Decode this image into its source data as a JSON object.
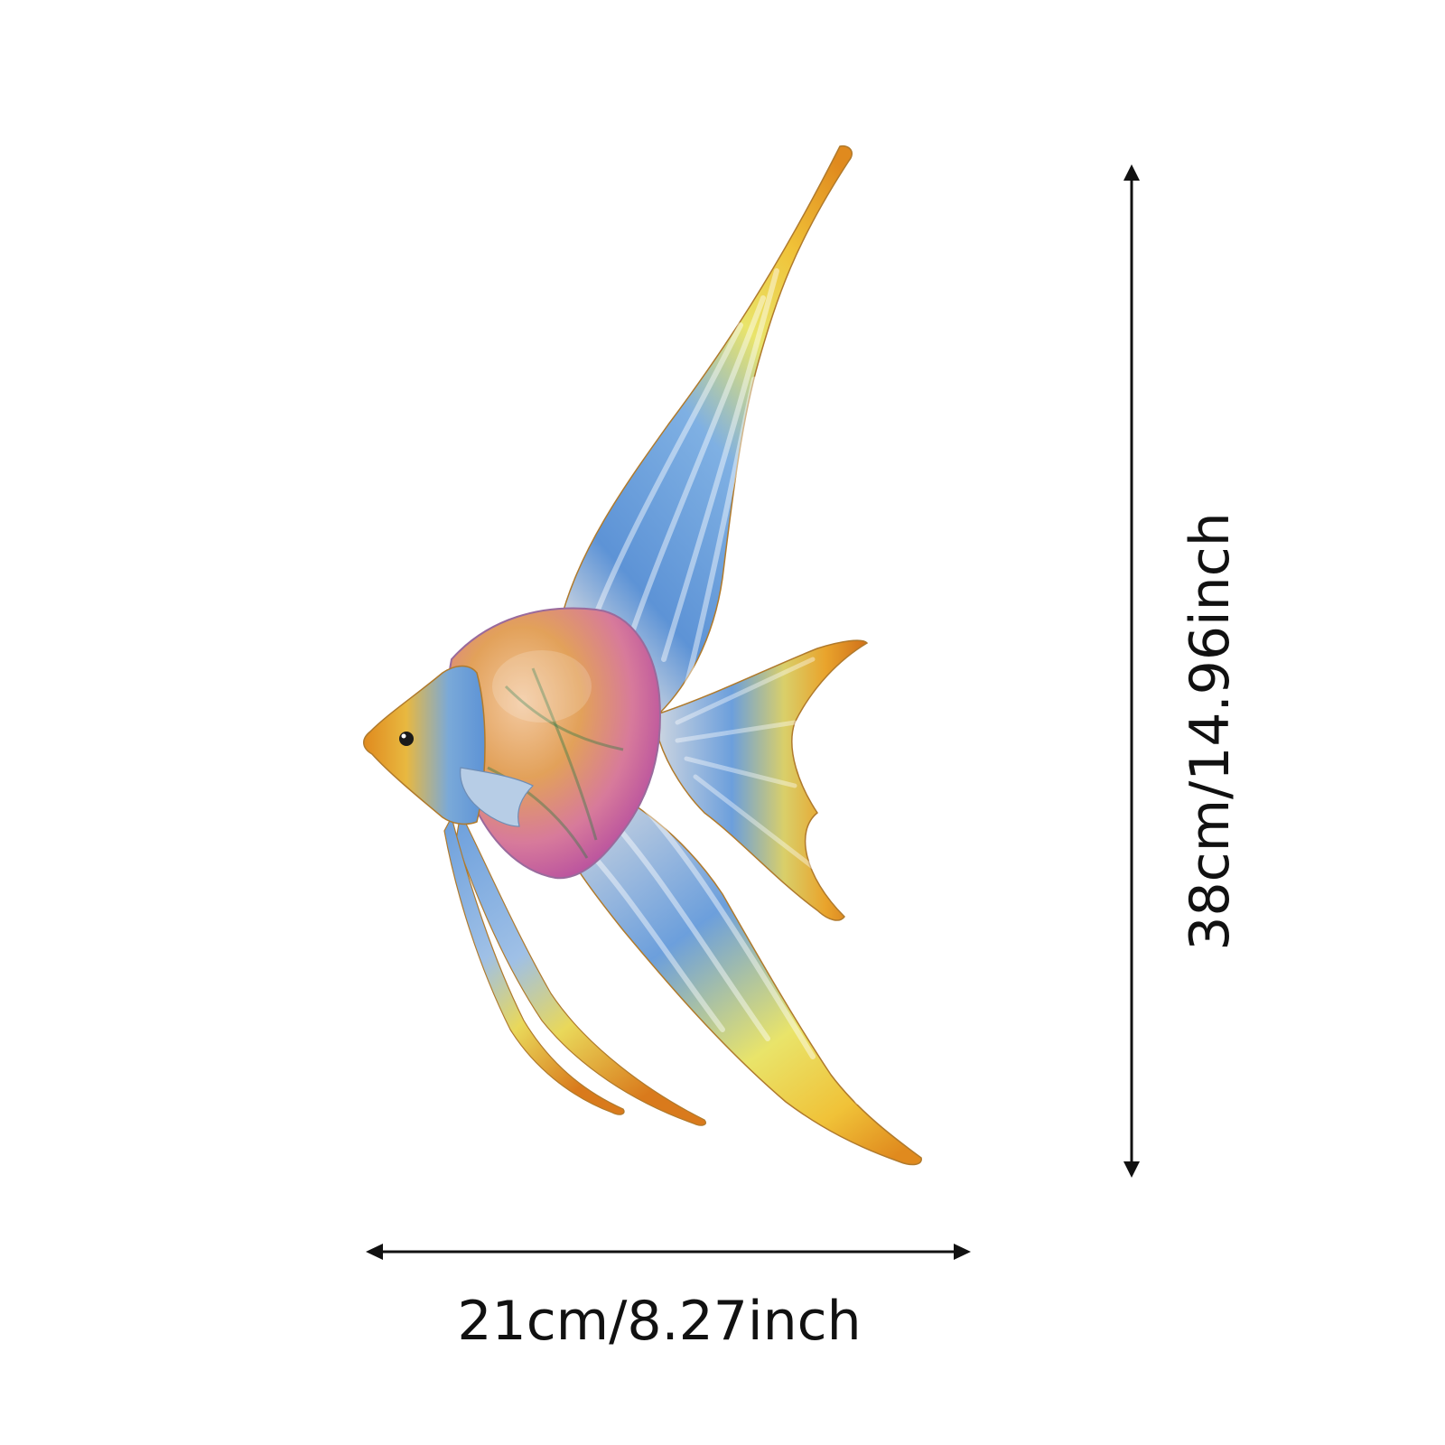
{
  "image": {
    "subject_icon": "angelfish-wall-art",
    "background_color": "#ffffff"
  },
  "dimensions": {
    "width_label": "21cm/8.27inch",
    "height_label": "38cm/14.96inch",
    "arrow_color": "#111111"
  },
  "palette": {
    "orange": "#e08a1e",
    "gold": "#f0c238",
    "yellow": "#e9e46a",
    "blue": "#5d93d6",
    "silver": "#c9d3e0",
    "magenta": "#a83aa0",
    "pink": "#d77a9b"
  }
}
